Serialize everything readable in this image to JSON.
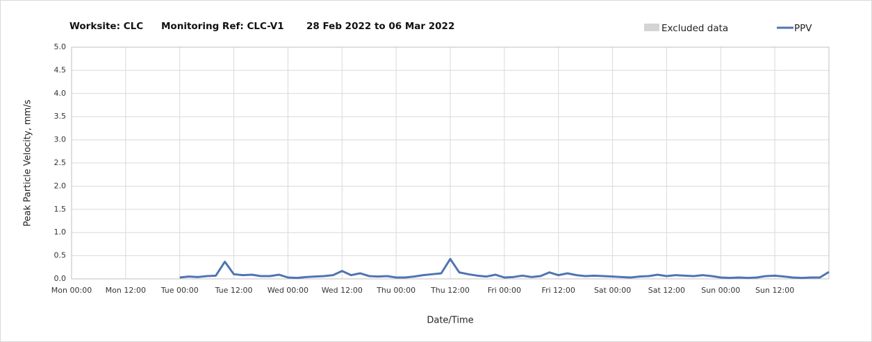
{
  "chart_data": {
    "type": "line",
    "title_parts": [
      "Worksite: CLC",
      "Monitoring Ref: CLC-V1",
      "28 Feb 2022 to 06 Mar 2022"
    ],
    "y_label": "Peak Particle Velocity, mm/s",
    "x_label": "Date/Time",
    "excluded": {
      "name": "Excluded data",
      "color": "#d4d4d4"
    },
    "x": [
      24,
      26,
      28,
      30,
      32,
      34,
      36,
      38,
      40,
      42,
      44,
      46,
      48,
      50,
      52,
      54,
      56,
      58,
      60,
      62,
      64,
      66,
      68,
      70,
      72,
      74,
      76,
      78,
      80,
      82,
      84,
      86,
      88,
      90,
      92,
      94,
      96,
      98,
      100,
      102,
      104,
      106,
      108,
      110,
      112,
      114,
      116,
      118,
      120,
      122,
      124,
      126,
      128,
      130,
      132,
      134,
      136,
      138,
      140,
      142,
      144,
      146,
      148,
      150,
      152,
      154,
      156,
      158,
      160,
      162,
      164,
      166,
      168
    ],
    "series": [
      {
        "name": "PPV",
        "color": "#4f74b3",
        "values": [
          0.03,
          0.05,
          0.04,
          0.06,
          0.07,
          0.37,
          0.1,
          0.08,
          0.09,
          0.06,
          0.06,
          0.09,
          0.03,
          0.02,
          0.04,
          0.05,
          0.06,
          0.08,
          0.17,
          0.08,
          0.12,
          0.06,
          0.05,
          0.06,
          0.03,
          0.03,
          0.05,
          0.08,
          0.1,
          0.12,
          0.43,
          0.14,
          0.1,
          0.07,
          0.05,
          0.09,
          0.03,
          0.04,
          0.07,
          0.04,
          0.06,
          0.14,
          0.08,
          0.12,
          0.08,
          0.06,
          0.07,
          0.06,
          0.05,
          0.04,
          0.03,
          0.05,
          0.06,
          0.09,
          0.06,
          0.08,
          0.07,
          0.06,
          0.08,
          0.06,
          0.03,
          0.02,
          0.03,
          0.02,
          0.03,
          0.06,
          0.07,
          0.05,
          0.03,
          0.02,
          0.03,
          0.03,
          0.15
        ]
      }
    ],
    "xlim": [
      0,
      168
    ],
    "xticks": [
      {
        "value": 0,
        "label": "Mon 00:00"
      },
      {
        "value": 12,
        "label": "Mon 12:00"
      },
      {
        "value": 24,
        "label": "Tue 00:00"
      },
      {
        "value": 36,
        "label": "Tue 12:00"
      },
      {
        "value": 48,
        "label": "Wed 00:00"
      },
      {
        "value": 60,
        "label": "Wed 12:00"
      },
      {
        "value": 72,
        "label": "Thu 00:00"
      },
      {
        "value": 84,
        "label": "Thu 12:00"
      },
      {
        "value": 96,
        "label": "Fri 00:00"
      },
      {
        "value": 108,
        "label": "Fri 12:00"
      },
      {
        "value": 120,
        "label": "Sat 00:00"
      },
      {
        "value": 132,
        "label": "Sat 12:00"
      },
      {
        "value": 144,
        "label": "Sun 00:00"
      },
      {
        "value": 156,
        "label": "Sun 12:00"
      }
    ],
    "ylim": [
      0,
      5
    ],
    "yticks": [
      {
        "value": 0,
        "label": "0.0"
      },
      0.5,
      {
        "value": 1,
        "label": "1.0"
      },
      1.5,
      {
        "value": 2,
        "label": "2.0"
      },
      2.5,
      {
        "value": 3,
        "label": "3.0"
      },
      3.5,
      {
        "value": 4,
        "label": "4.0"
      },
      4.5,
      {
        "value": 5,
        "label": "5.0"
      }
    ],
    "grid": true
  }
}
